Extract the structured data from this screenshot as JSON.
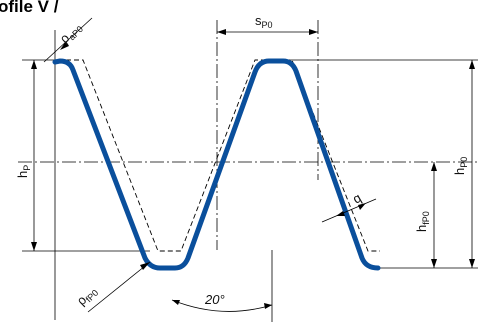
{
  "diagram": {
    "title": "ofile  V /",
    "labels": {
      "spo": {
        "base": "s",
        "sub": "P0"
      },
      "qapo": {
        "base": "ρ",
        "sub": "aP0"
      },
      "hp": {
        "base": "h",
        "sub": "P"
      },
      "hpo": {
        "base": "h",
        "sub": "P0"
      },
      "hfpo": {
        "base": "h",
        "sub": "fP0"
      },
      "qfpo": {
        "base": "ρ",
        "sub": "fP0"
      },
      "q": {
        "base": "q",
        "sub": ""
      },
      "angle": "20°"
    },
    "colors": {
      "profile": "#0a4f9c",
      "lines": "#000000"
    }
  }
}
